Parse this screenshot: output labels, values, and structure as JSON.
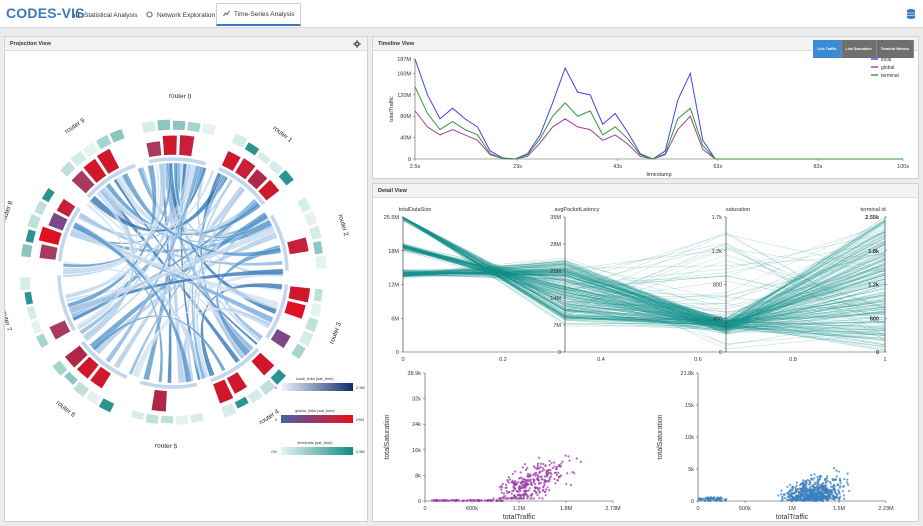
{
  "app": {
    "brand": "CODES-VIS",
    "tabs": [
      {
        "label": "Statistical Analysis",
        "icon": "bar-chart-icon"
      },
      {
        "label": "Network Exploration",
        "icon": "circle-icon"
      },
      {
        "label": "Time-Series Analysis",
        "icon": "line-chart-icon",
        "active": true
      }
    ],
    "menu_icon": "database-icon"
  },
  "projection": {
    "title": "Projection View",
    "routers": [
      "router 0",
      "router 1",
      "router 2",
      "router 3",
      "router 4",
      "router 5",
      "router 6",
      "router 7",
      "router 8",
      "router 9"
    ],
    "legends": [
      {
        "label": "local_links (sat_time)",
        "min": "0",
        "max": "2.9M",
        "from": "#f2f6fc",
        "to": "#0d2c6b"
      },
      {
        "label": "global_links (sat_time)",
        "min": "0",
        "max": "29M",
        "from": "#4a5fa8",
        "to": "#e8101a"
      },
      {
        "label": "terminals (sat_time)",
        "min": "0%",
        "max": "2.5M",
        "from": "#e8f4f2",
        "to": "#128a86"
      }
    ]
  },
  "timeline": {
    "title": "Timeline View",
    "buttons": [
      "Link Traffic",
      "Link Saturation",
      "Terminal Metrics"
    ],
    "active_button": 0
  },
  "detail": {
    "title": "Detail View",
    "axes": [
      {
        "name": "totalDataSize",
        "ticks": [
          "25.5M",
          "18M",
          "12M",
          "6M",
          "0"
        ]
      },
      {
        "name": "avgPacketLatency",
        "ticks": [
          "35M",
          "28M",
          "21M",
          "14M",
          "7M",
          "0"
        ]
      },
      {
        "name": "saturation",
        "ticks": [
          "1.7k",
          "1.2k",
          "800",
          "400",
          "0"
        ]
      },
      {
        "name": "terminal id",
        "ticks": [
          "2.55k",
          "1.8k",
          "1.2k",
          "600",
          "0"
        ]
      }
    ],
    "bottom_ticks": [
      "0",
      "0.2",
      "0.4",
      "0.6",
      "0.8",
      "1"
    ]
  },
  "chart_data": [
    {
      "type": "line",
      "x": [
        2.5,
        5,
        7.5,
        10,
        12.5,
        15,
        17.5,
        20,
        22.5,
        25,
        27.5,
        30,
        32.5,
        35,
        37.5,
        40,
        42.5,
        45,
        47.5,
        50,
        52.5,
        55,
        57.5,
        60,
        62.5,
        65,
        67.5,
        70,
        72.5,
        75,
        77.5,
        80,
        82.5,
        85,
        87.5,
        90,
        92.5,
        95,
        97.5,
        100
      ],
      "xticks": [
        "2.5s",
        "23s",
        "43s",
        "63s",
        "83s",
        "100s"
      ],
      "xlabel": "timestamp",
      "ylabel": "totalTraffic",
      "yticks": [
        "0",
        "40M",
        "80M",
        "120M",
        "160M",
        "187M"
      ],
      "ylim": [
        0,
        187
      ],
      "legend": "top-right",
      "series": [
        {
          "name": "local",
          "color": "#4a3ff0",
          "values": [
            187,
            120,
            75,
            95,
            75,
            60,
            15,
            2,
            0,
            10,
            45,
            105,
            170,
            125,
            120,
            65,
            85,
            50,
            10,
            0,
            15,
            110,
            160,
            35,
            0,
            0,
            0,
            0,
            0,
            0,
            0,
            0,
            0,
            0,
            0,
            0,
            0,
            0,
            0,
            0
          ]
        },
        {
          "name": "global",
          "color": "#a0409a",
          "values": [
            90,
            60,
            45,
            55,
            45,
            35,
            8,
            1,
            0,
            5,
            30,
            60,
            75,
            60,
            55,
            35,
            45,
            28,
            5,
            0,
            8,
            55,
            80,
            18,
            0,
            0,
            0,
            0,
            0,
            0,
            0,
            0,
            0,
            0,
            0,
            0,
            0,
            0,
            0,
            0
          ]
        },
        {
          "name": "terminal",
          "color": "#2e9a3a",
          "values": [
            135,
            85,
            55,
            70,
            55,
            45,
            10,
            1,
            0,
            8,
            38,
            80,
            105,
            80,
            90,
            45,
            60,
            38,
            8,
            0,
            10,
            75,
            95,
            25,
            0,
            0,
            0,
            0,
            0,
            0,
            0,
            0,
            0,
            0,
            0,
            0,
            0,
            0,
            0,
            0
          ]
        }
      ]
    },
    {
      "type": "scatter",
      "xlabel": "totalTraffic",
      "ylabel": "totalSaturation",
      "xticks": [
        "0",
        "600k",
        "1.2M",
        "1.8M",
        "2.73M"
      ],
      "yticks": [
        "0",
        "8k",
        "16k",
        "24k",
        "32k",
        "38.9k"
      ],
      "color": "#9b3aa8"
    },
    {
      "type": "scatter",
      "xlabel": "totalTraffic",
      "ylabel": "totalSaturation",
      "xticks": [
        "0",
        "500k",
        "1M",
        "1.5M",
        "2.23M"
      ],
      "yticks": [
        "0",
        "5k",
        "10k",
        "15k",
        "21.8k"
      ],
      "color": "#3a7fbf"
    }
  ]
}
